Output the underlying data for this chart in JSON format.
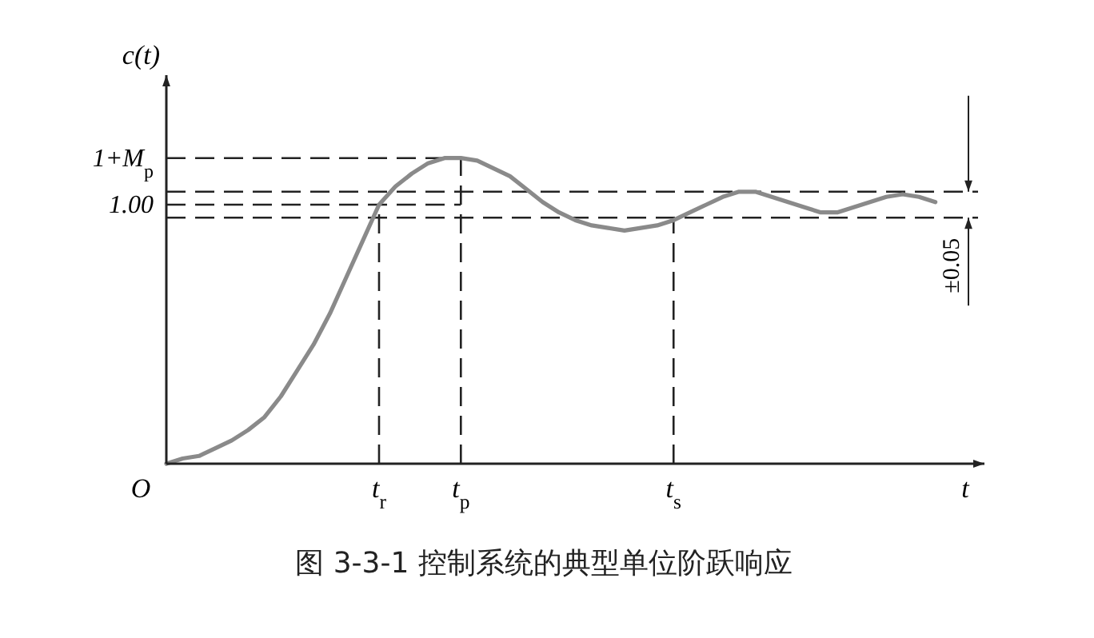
{
  "chart_data": {
    "type": "line",
    "ylim": [
      0,
      1.5
    ],
    "title": "图 3-3-1  控制系统的典型单位阶跃响应",
    "xlabel": "t",
    "ylabel": "c(t)",
    "categories": [
      null,
      null,
      null,
      null,
      null,
      null,
      null,
      null,
      null,
      null,
      null,
      null,
      null,
      "t$_{r}$",
      null,
      null,
      null,
      null,
      "t$_{p}$",
      null,
      null,
      null,
      null,
      null,
      null,
      null,
      null,
      null,
      null,
      null,
      null,
      "t$_{s}$",
      null,
      null,
      null,
      null,
      null,
      null,
      null,
      null,
      null,
      null,
      null,
      null,
      null,
      null,
      null,
      null
    ],
    "series": [
      {
        "color": "#8a8a8a",
        "values": [
          0.0,
          0.02,
          0.03,
          0.06,
          0.09,
          0.13,
          0.18,
          0.26,
          0.36,
          0.46,
          0.58,
          0.72,
          0.86,
          1.0,
          1.07,
          1.12,
          1.16,
          1.18,
          1.18,
          1.17,
          1.14,
          1.11,
          1.06,
          1.01,
          0.97,
          0.94,
          0.92,
          0.91,
          0.9,
          0.91,
          0.92,
          0.94,
          0.97,
          1.0,
          1.03,
          1.05,
          1.05,
          1.03,
          1.01,
          0.99,
          0.97,
          0.97,
          0.99,
          1.01,
          1.03,
          1.04,
          1.03,
          1.01
        ]
      }
    ],
    "ref_lines": [
      {
        "axis": "x",
        "value": "t$_{r}$",
        "line_style": "dashed"
      },
      {
        "axis": "x",
        "value": "t$_{p}$",
        "line_style": "dashed"
      },
      {
        "axis": "x",
        "value": "t$_{s}$",
        "line_style": "dashed"
      },
      {
        "axis": "y",
        "value": 1.18,
        "label": "1+M$_{p}$",
        "line_style": "dashed"
      },
      {
        "axis": "y",
        "value": 1.0,
        "label": "1.00",
        "line_style": "dashed"
      },
      {
        "axis": "y",
        "value": 1.05,
        "line_style": "dashed"
      },
      {
        "axis": "y",
        "value": 0.95,
        "line_style": "dashed"
      }
    ],
    "annotations": [
      "O",
      "±0.05"
    ]
  }
}
